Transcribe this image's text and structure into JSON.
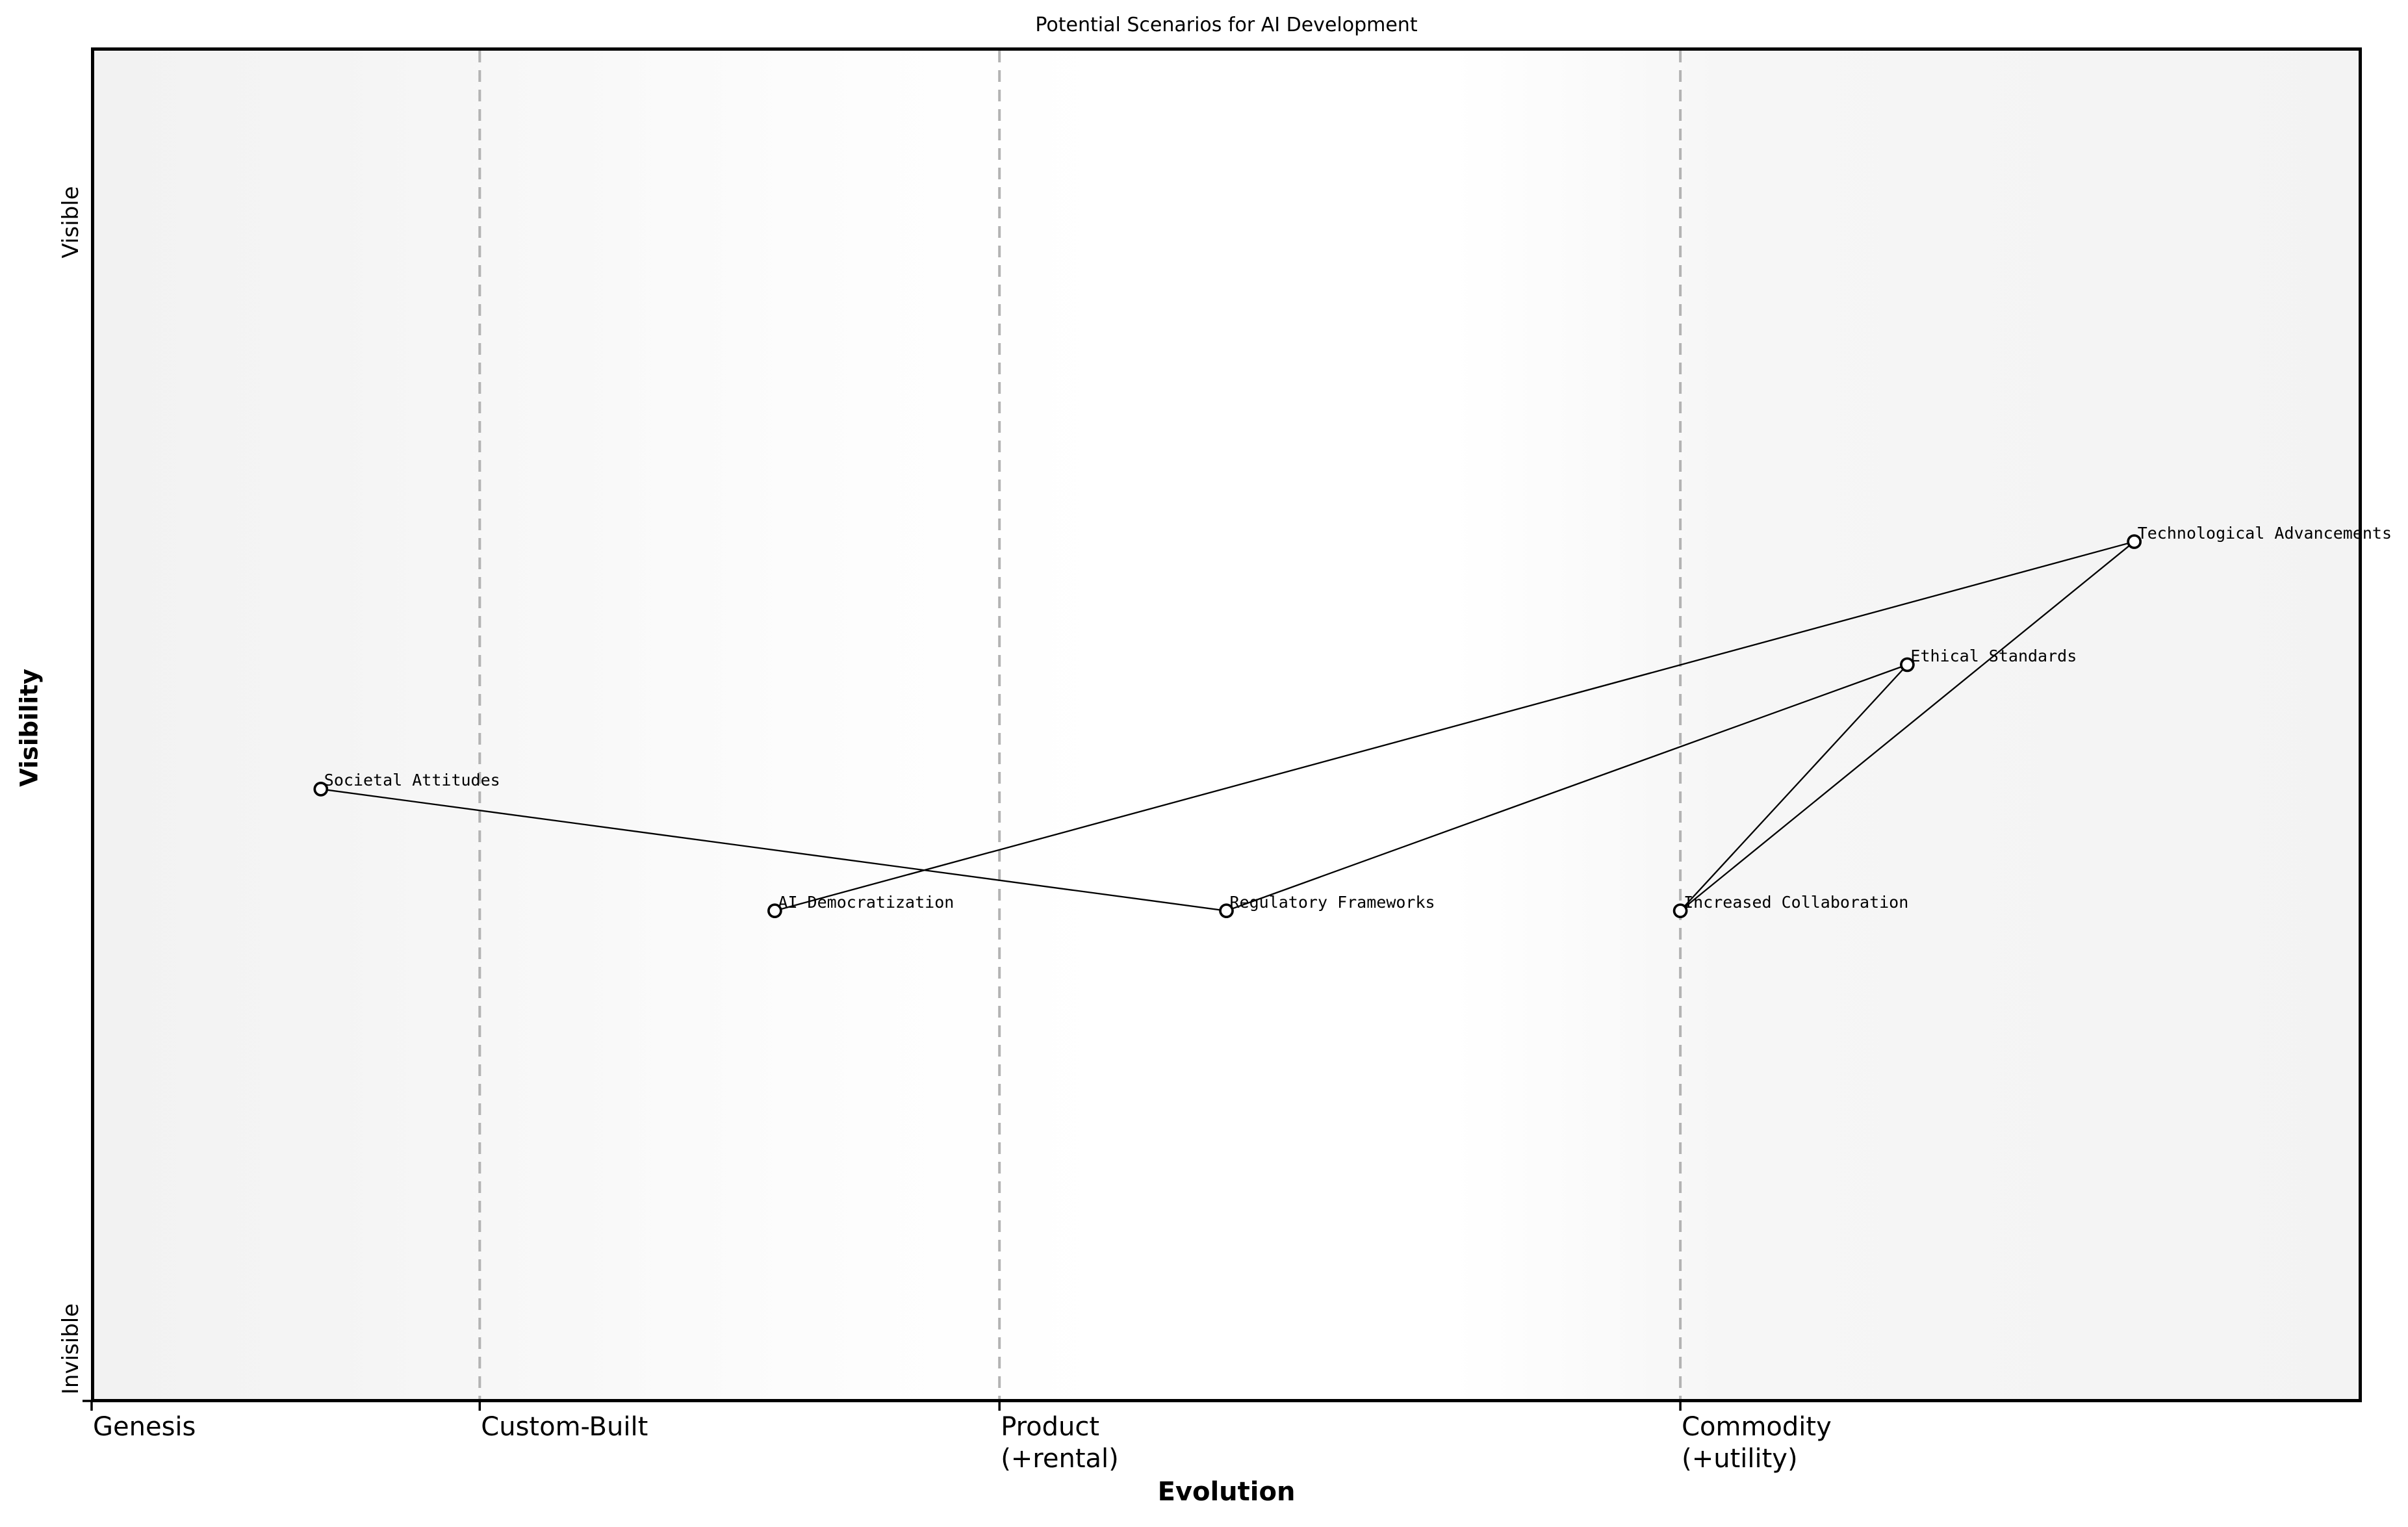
{
  "page": {
    "title": "Potential Scenarios for AI Development"
  },
  "chart_data": {
    "type": "scatter",
    "subtype": "wardley-map",
    "title": "Potential Scenarios for AI Development",
    "xlabel": "Evolution",
    "ylabel": "Visibility",
    "x_axis_range": [
      0,
      1
    ],
    "y_axis_range": [
      0,
      1
    ],
    "legend": "none",
    "grid": "dashed vertical stage boundaries",
    "x_ticks": [
      {
        "label": "Genesis",
        "x": 0.0,
        "gridline": false
      },
      {
        "label": "Custom-Built",
        "x": 0.171,
        "gridline": true
      },
      {
        "label": "Product\n(+rental)",
        "x": 0.4,
        "gridline": true
      },
      {
        "label": "Commodity\n(+utility)",
        "x": 0.7,
        "gridline": true
      }
    ],
    "y_ticks": [
      {
        "label": "Visible",
        "y": 0.871
      },
      {
        "label": "Invisible",
        "y": 0.038
      }
    ],
    "nodes": [
      {
        "id": "societal-attitudes",
        "label": "Societal Attitudes",
        "x": 0.101,
        "y": 0.452
      },
      {
        "id": "ai-democratization",
        "label": "AI Democratization",
        "x": 0.301,
        "y": 0.362
      },
      {
        "id": "regulatory-frameworks",
        "label": "Regulatory Frameworks",
        "x": 0.5,
        "y": 0.362
      },
      {
        "id": "increased-collaboration",
        "label": "Increased Collaboration",
        "x": 0.7,
        "y": 0.362
      },
      {
        "id": "ethical-standards",
        "label": "Ethical Standards",
        "x": 0.8,
        "y": 0.544
      },
      {
        "id": "technological-advancements",
        "label": "Technological Advancements",
        "x": 0.9,
        "y": 0.635
      }
    ],
    "edges": [
      [
        "societal-attitudes",
        "regulatory-frameworks"
      ],
      [
        "ai-democratization",
        "technological-advancements"
      ],
      [
        "regulatory-frameworks",
        "ethical-standards"
      ],
      [
        "increased-collaboration",
        "ethical-standards"
      ],
      [
        "increased-collaboration",
        "technological-advancements"
      ]
    ],
    "colors": {
      "node_fill": "#ffffff",
      "node_edge": "#000000",
      "edge_line": "#000000",
      "gridline": "#b3b3b3",
      "spine": "#000000",
      "text": "#000000",
      "plot_bg_left": "#f2f2f2",
      "plot_bg_center": "#ffffff",
      "plot_bg_right": "#f3f3f3"
    }
  }
}
